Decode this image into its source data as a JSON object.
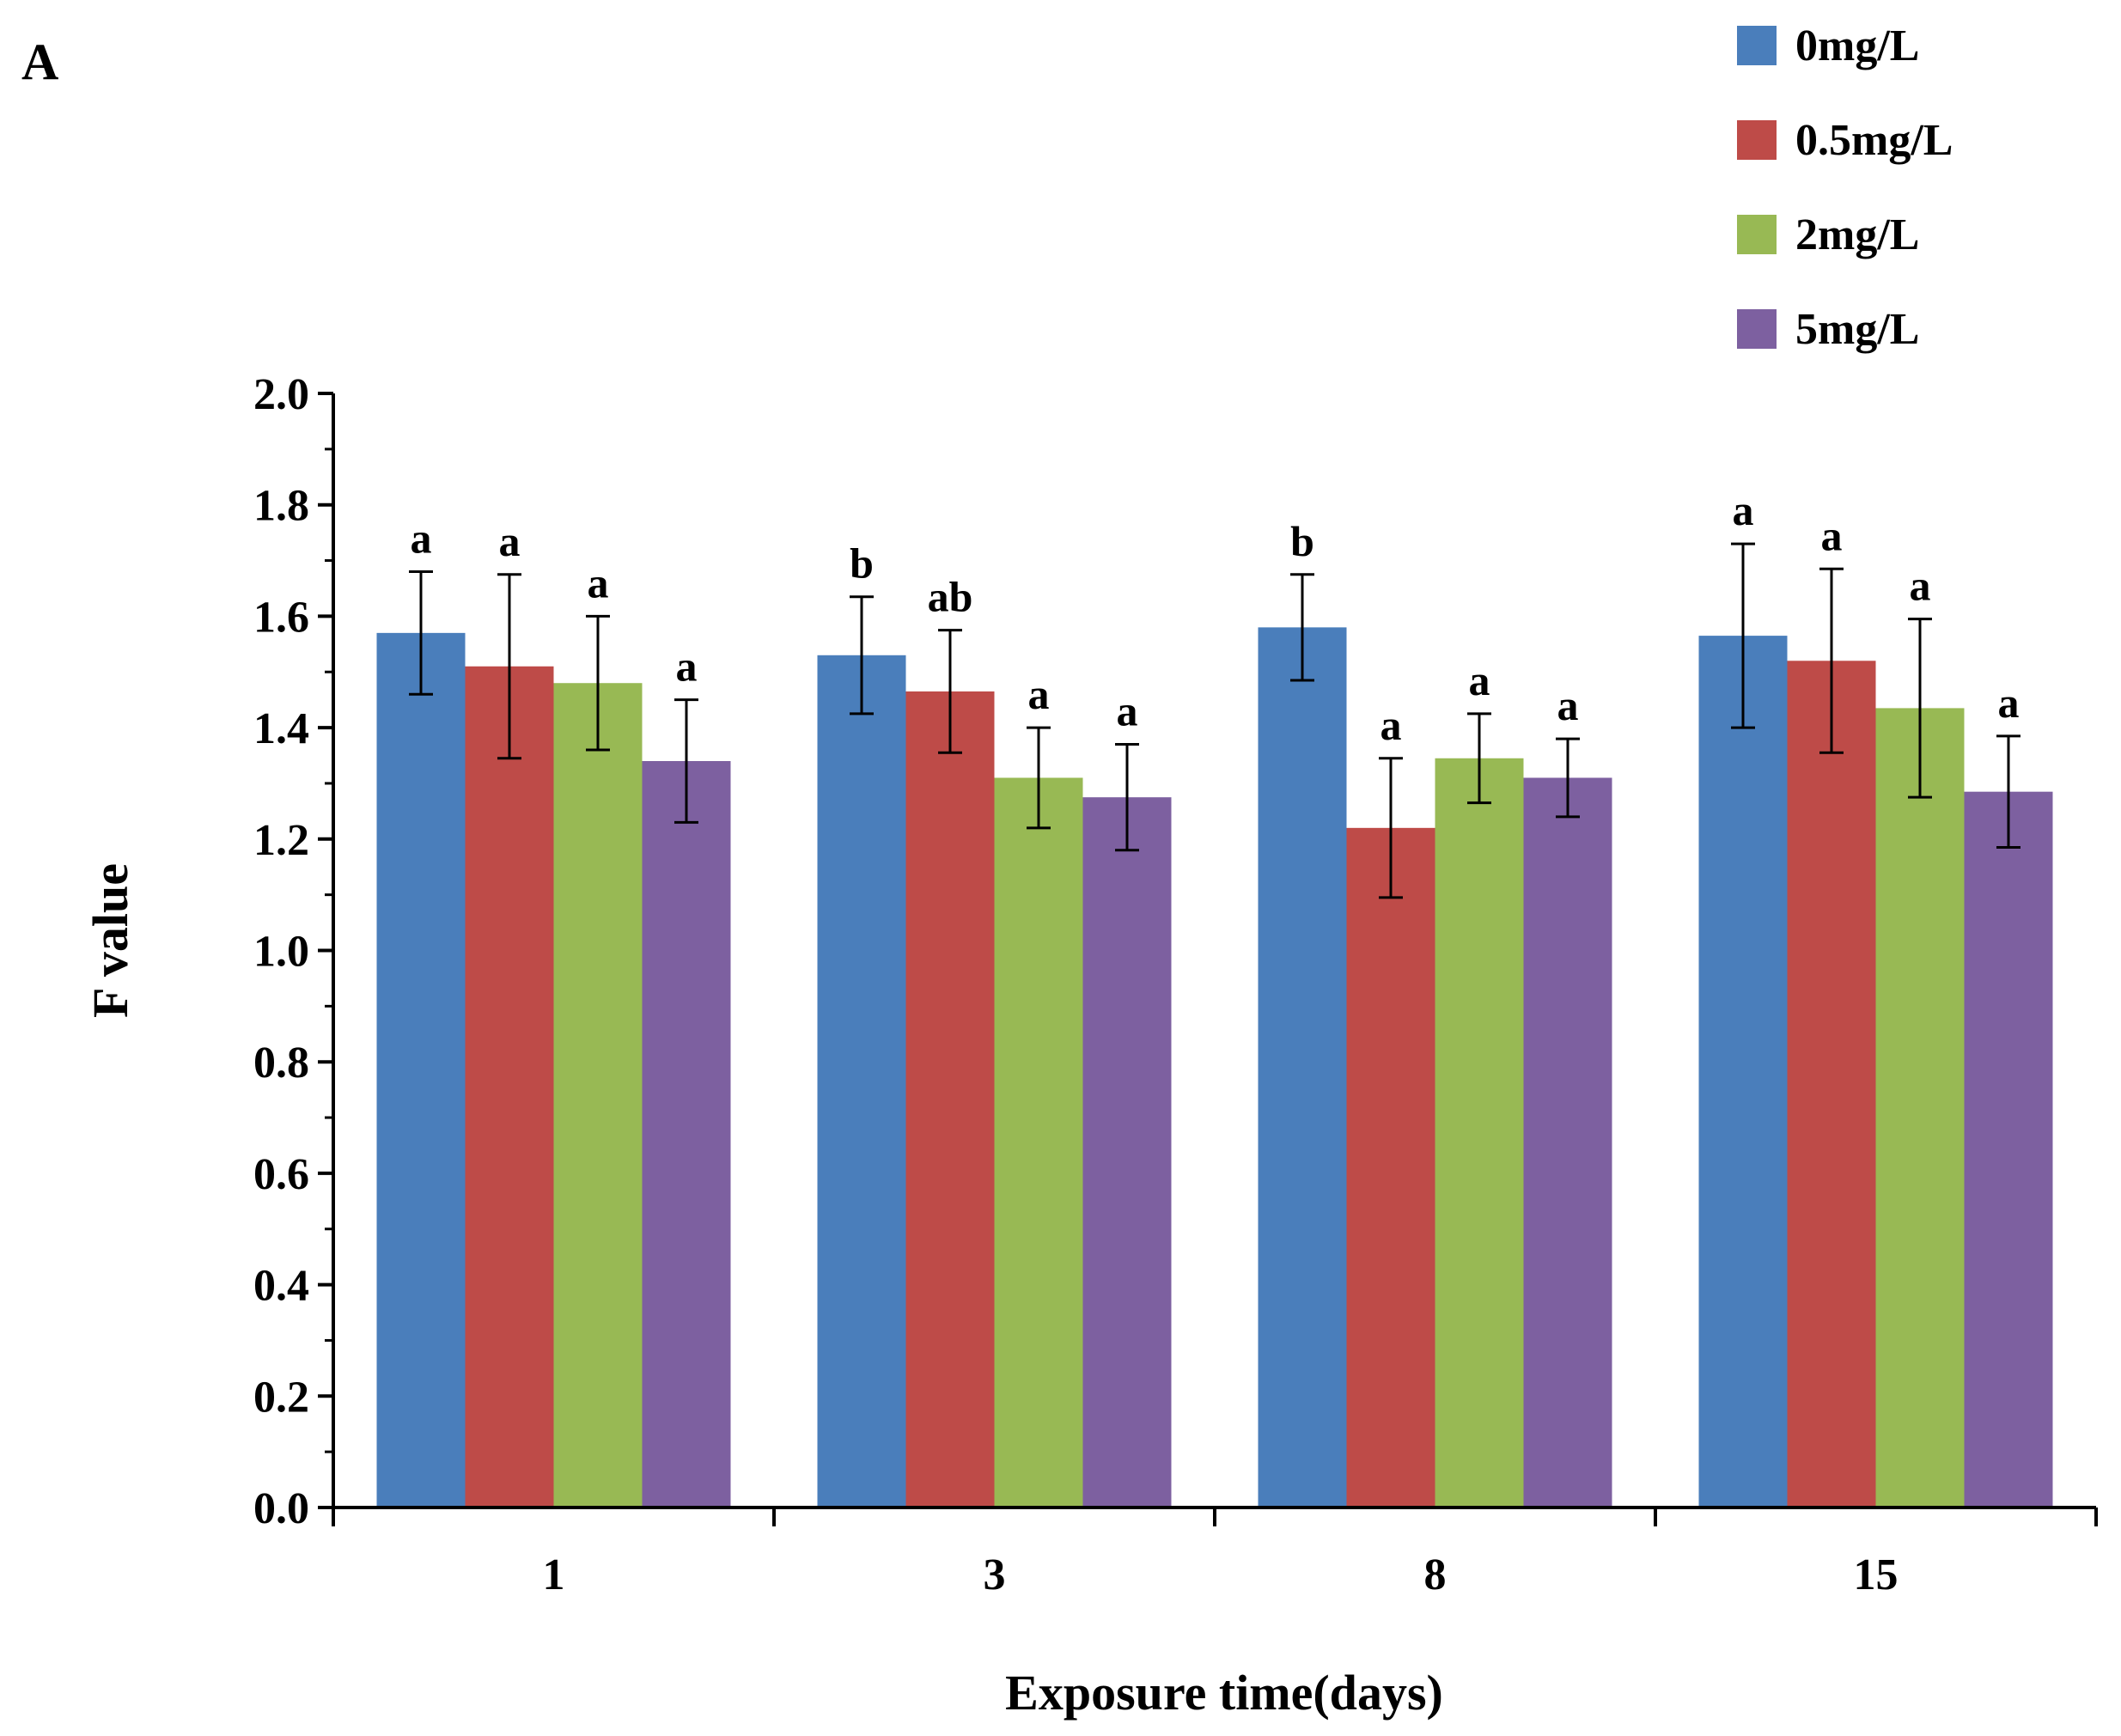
{
  "panel_label": "A",
  "chart_data": {
    "type": "bar",
    "title": "",
    "xlabel": "Exposure time(days)",
    "ylabel": "F value",
    "ylim": [
      0,
      2.0
    ],
    "yticks": [
      "0.0",
      "0.2",
      "0.4",
      "0.6",
      "0.8",
      "1.0",
      "1.2",
      "1.4",
      "1.6",
      "1.8",
      "2.0"
    ],
    "categories": [
      "1",
      "3",
      "8",
      "15"
    ],
    "legend_position": "top-right",
    "series": [
      {
        "name": "0mg/L",
        "color": "#4a7ebb",
        "values": [
          1.57,
          1.53,
          1.58,
          1.565
        ],
        "errors": [
          0.11,
          0.105,
          0.095,
          0.165
        ],
        "labels": [
          "a",
          "b",
          "b",
          "a"
        ]
      },
      {
        "name": "0.5mg/L",
        "color": "#be4b48",
        "values": [
          1.51,
          1.465,
          1.22,
          1.52
        ],
        "errors": [
          0.165,
          0.11,
          0.125,
          0.165
        ],
        "labels": [
          "a",
          "ab",
          "a",
          "a"
        ]
      },
      {
        "name": "2mg/L",
        "color": "#98b954",
        "values": [
          1.48,
          1.31,
          1.345,
          1.435
        ],
        "errors": [
          0.12,
          0.09,
          0.08,
          0.16
        ],
        "labels": [
          "a",
          "a",
          "a",
          "a"
        ]
      },
      {
        "name": "5mg/L",
        "color": "#7d60a0",
        "values": [
          1.34,
          1.275,
          1.31,
          1.285
        ],
        "errors": [
          0.11,
          0.095,
          0.07,
          0.1
        ],
        "labels": [
          "a",
          "a",
          "a",
          "a"
        ]
      }
    ]
  }
}
